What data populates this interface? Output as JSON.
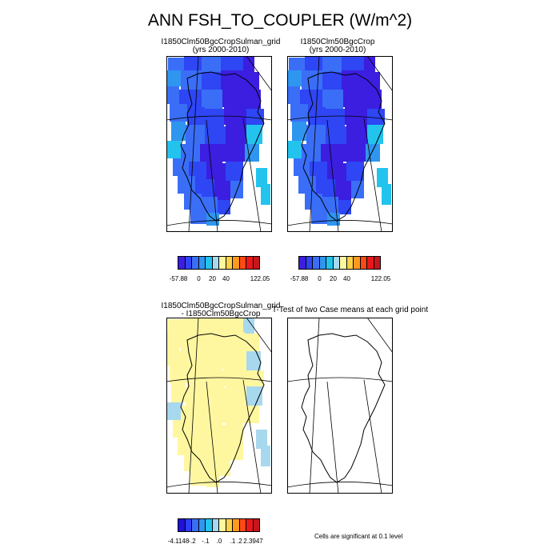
{
  "title": "ANN FSH_TO_COUPLER (W/m^2)",
  "panels": [
    {
      "id": "case1",
      "title": "I1850Clm50BgcCropSulman_grid",
      "subtitle": "(yrs 2000-2010)"
    },
    {
      "id": "case2",
      "title": "I1850Clm50BgcCrop",
      "subtitle": "(yrs 2000-2010)"
    },
    {
      "id": "diff",
      "title": "I1850Clm50BgcCropSulman_grid",
      "subtitle": "- I1850Clm50BgcCrop"
    },
    {
      "id": "ttest",
      "title": "T-Test of two Case means at each grid point",
      "subtitle": ""
    }
  ],
  "colorbar_top": {
    "colors": [
      "#3b1ee0",
      "#2e46f4",
      "#3a6ef7",
      "#2f96f0",
      "#22c4ee",
      "#a8d8ee",
      "#fff7a0",
      "#ffd24a",
      "#ff9a1e",
      "#ff4a14",
      "#e8181c",
      "#c4161c"
    ],
    "labels": [
      {
        "text": "-57.88",
        "index": 0
      },
      {
        "text": "0",
        "index": 3
      },
      {
        "text": "20",
        "index": 5
      },
      {
        "text": "40",
        "index": 7
      },
      {
        "text": "122.05",
        "index": 12
      }
    ]
  },
  "colorbar_bottom": {
    "colors": [
      "#2010d8",
      "#2e3ef4",
      "#3a6ef7",
      "#2f96f0",
      "#22c4ee",
      "#a8d8ee",
      "#fff7a0",
      "#ffd24a",
      "#ff9a1e",
      "#ff4a14",
      "#e8181c",
      "#c4161c"
    ],
    "labels": [
      {
        "text": "-4.1148",
        "index": 0
      },
      {
        "text": "-.2",
        "index": 2
      },
      {
        "text": "-.1",
        "index": 4
      },
      {
        "text": ".0",
        "index": 6
      },
      {
        "text": ".1",
        "index": 8
      },
      {
        "text": ".2",
        "index": 9
      },
      {
        "text": "2.3947",
        "index": 11
      }
    ]
  },
  "significance_note": "Cells are significant at 0.1 level"
}
